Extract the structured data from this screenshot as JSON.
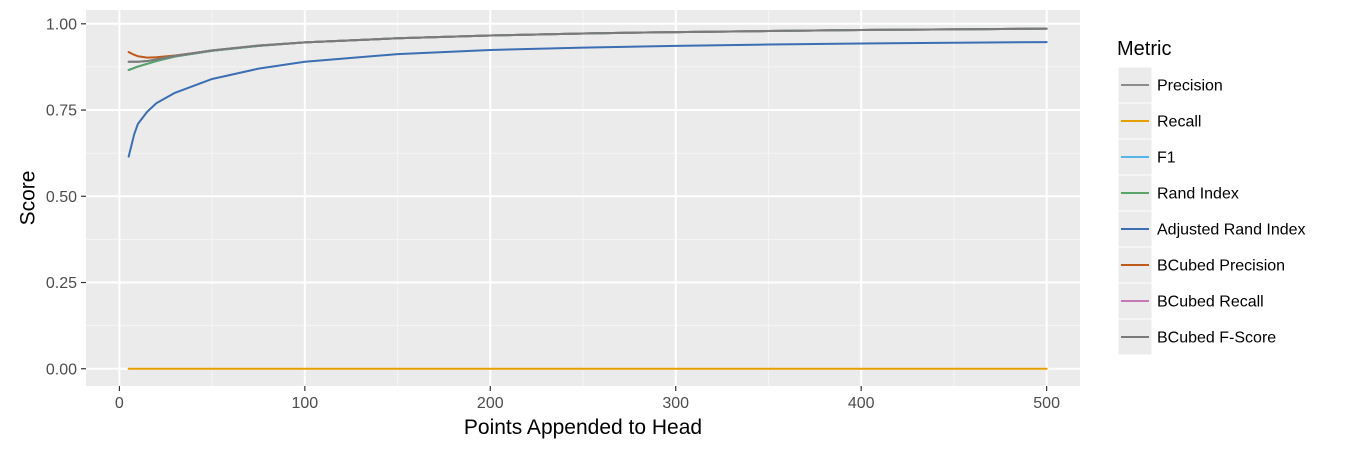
{
  "chart_data": {
    "type": "line",
    "title": "",
    "xlabel": "Points Appended to Head",
    "ylabel": "Score",
    "xlim": [
      -18,
      518
    ],
    "ylim": [
      -0.05,
      1.04
    ],
    "x_ticks": [
      0,
      100,
      200,
      300,
      400,
      500
    ],
    "y_ticks": [
      0.0,
      0.25,
      0.5,
      0.75,
      1.0
    ],
    "x_tick_labels": [
      "0",
      "100",
      "200",
      "300",
      "400",
      "500"
    ],
    "y_tick_labels": [
      "0.00",
      "0.25",
      "0.50",
      "0.75",
      "1.00"
    ],
    "grid": true,
    "legend": {
      "title": "Metric",
      "placement": "right"
    },
    "x": [
      5,
      8,
      10,
      15,
      20,
      30,
      50,
      75,
      100,
      150,
      200,
      250,
      300,
      350,
      400,
      450,
      500
    ],
    "series": [
      {
        "name": "Precision",
        "color": "#8c8c8c",
        "values": [
          0.89,
          0.89,
          0.89,
          0.892,
          0.897,
          0.907,
          0.923,
          0.937,
          0.946,
          0.958,
          0.966,
          0.972,
          0.976,
          0.979,
          0.982,
          0.984,
          0.986
        ]
      },
      {
        "name": "Recall",
        "color": "#e69f00",
        "values": [
          0.0,
          0.0,
          0.0,
          0.0,
          0.0,
          0.0,
          0.0,
          0.0,
          0.0,
          0.0,
          0.0,
          0.0,
          0.0,
          0.0,
          0.0,
          0.0,
          0.0
        ]
      },
      {
        "name": "F1",
        "color": "#56b4e9",
        "values": [
          0.866,
          0.872,
          0.876,
          0.884,
          0.892,
          0.905,
          0.922,
          0.936,
          0.946,
          0.958,
          0.966,
          0.972,
          0.976,
          0.979,
          0.982,
          0.984,
          0.986
        ]
      },
      {
        "name": "Rand Index",
        "color": "#5aa469",
        "values": [
          0.866,
          0.872,
          0.876,
          0.884,
          0.892,
          0.905,
          0.922,
          0.936,
          0.946,
          0.958,
          0.966,
          0.972,
          0.976,
          0.979,
          0.982,
          0.984,
          0.986
        ]
      },
      {
        "name": "Adjusted Rand Index",
        "color": "#3c6eb4",
        "values": [
          0.615,
          0.68,
          0.71,
          0.745,
          0.77,
          0.8,
          0.84,
          0.87,
          0.89,
          0.912,
          0.924,
          0.931,
          0.936,
          0.94,
          0.943,
          0.945,
          0.947
        ]
      },
      {
        "name": "BCubed Precision",
        "color": "#c05a1a",
        "values": [
          0.918,
          0.91,
          0.906,
          0.902,
          0.903,
          0.908,
          0.922,
          0.936,
          0.946,
          0.958,
          0.966,
          0.972,
          0.976,
          0.979,
          0.982,
          0.984,
          0.986
        ]
      },
      {
        "name": "BCubed Recall",
        "color": "#c678b5",
        "values": [
          0.866,
          0.872,
          0.876,
          0.884,
          0.892,
          0.905,
          0.922,
          0.936,
          0.946,
          0.958,
          0.966,
          0.972,
          0.976,
          0.979,
          0.982,
          0.984,
          0.986
        ]
      },
      {
        "name": "BCubed F-Score",
        "color": "#7a7a7a",
        "values": [
          0.89,
          0.89,
          0.89,
          0.892,
          0.897,
          0.907,
          0.923,
          0.937,
          0.946,
          0.958,
          0.966,
          0.972,
          0.976,
          0.979,
          0.982,
          0.984,
          0.986
        ]
      }
    ]
  }
}
